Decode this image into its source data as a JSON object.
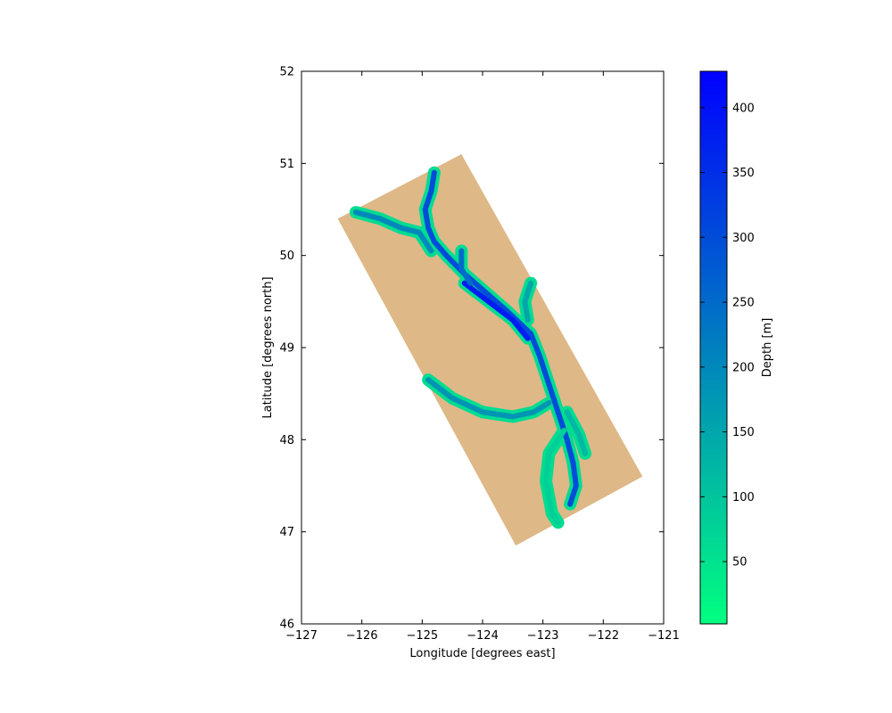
{
  "chart_data": {
    "type": "heatmap",
    "title": "",
    "xlabel": "Longitude [degrees east]",
    "ylabel": "Latitude [degrees north]",
    "xlim": [
      -127,
      -121
    ],
    "ylim": [
      46,
      52
    ],
    "xticks": [
      -127,
      -126,
      -125,
      -124,
      -123,
      -122,
      -121
    ],
    "yticks": [
      46,
      47,
      48,
      49,
      50,
      51,
      52
    ],
    "xtick_labels": [
      "−127",
      "−126",
      "−125",
      "−124",
      "−123",
      "−122",
      "−121"
    ],
    "ytick_labels": [
      "46",
      "47",
      "48",
      "49",
      "50",
      "51",
      "52"
    ],
    "grid": false,
    "land_color": "#deb887",
    "domain_corners": [
      [
        -126.4,
        50.4
      ],
      [
        -124.35,
        51.1
      ],
      [
        -121.35,
        47.6
      ],
      [
        -123.45,
        46.85
      ]
    ],
    "water_channels": [
      {
        "name": "",
        "points": [
          [
            -124.8,
            50.9
          ],
          [
            -124.85,
            50.7
          ],
          [
            -124.95,
            50.5
          ],
          [
            -124.9,
            50.3
          ],
          [
            -124.8,
            50.15
          ],
          [
            -124.6,
            50.0
          ],
          [
            -124.3,
            49.8
          ],
          [
            -123.95,
            49.6
          ],
          [
            -123.6,
            49.4
          ],
          [
            -123.2,
            49.15
          ],
          [
            -123.05,
            48.9
          ],
          [
            -122.9,
            48.6
          ],
          [
            -122.75,
            48.3
          ],
          [
            -122.6,
            48.0
          ],
          [
            -122.5,
            47.75
          ],
          [
            -122.45,
            47.5
          ],
          [
            -122.55,
            47.3
          ]
        ],
        "depth": 300
      },
      {
        "name": "",
        "points": [
          [
            -126.1,
            50.47
          ],
          [
            -125.7,
            50.4
          ],
          [
            -125.35,
            50.3
          ],
          [
            -125.05,
            50.25
          ],
          [
            -124.85,
            50.05
          ]
        ],
        "depth": 200
      },
      {
        "name": "",
        "points": [
          [
            -124.9,
            48.65
          ],
          [
            -124.5,
            48.45
          ],
          [
            -124.0,
            48.3
          ],
          [
            -123.5,
            48.25
          ],
          [
            -123.15,
            48.3
          ],
          [
            -122.9,
            48.4
          ]
        ],
        "depth": 180
      },
      {
        "name": "",
        "points": [
          [
            -124.3,
            49.7
          ],
          [
            -123.9,
            49.5
          ],
          [
            -123.5,
            49.3
          ],
          [
            -123.25,
            49.1
          ]
        ],
        "depth": 380
      },
      {
        "name": "",
        "points": [
          [
            -124.35,
            50.05
          ],
          [
            -124.35,
            49.85
          ],
          [
            -124.2,
            49.7
          ]
        ],
        "depth": 250
      },
      {
        "name": "",
        "points": [
          [
            -123.2,
            49.7
          ],
          [
            -123.3,
            49.5
          ],
          [
            -123.25,
            49.3
          ]
        ],
        "depth": 150
      },
      {
        "name": "",
        "points": [
          [
            -122.65,
            48.1
          ],
          [
            -122.9,
            47.85
          ],
          [
            -122.95,
            47.55
          ],
          [
            -122.85,
            47.2
          ],
          [
            -122.75,
            47.1
          ]
        ],
        "depth": 80
      },
      {
        "name": "",
        "points": [
          [
            -122.6,
            48.3
          ],
          [
            -122.4,
            48.05
          ],
          [
            -122.3,
            47.85
          ]
        ],
        "depth": 120
      }
    ],
    "colorbar": {
      "label": "Depth [m]",
      "min": 2,
      "max": 428,
      "ticks": [
        50,
        100,
        150,
        200,
        250,
        300,
        350,
        400
      ],
      "tick_labels": [
        "50",
        "100",
        "150",
        "200",
        "250",
        "300",
        "350",
        "400"
      ],
      "colormap": "winter_r",
      "color_low": "#00ff80",
      "color_high": "#0000ff"
    }
  }
}
